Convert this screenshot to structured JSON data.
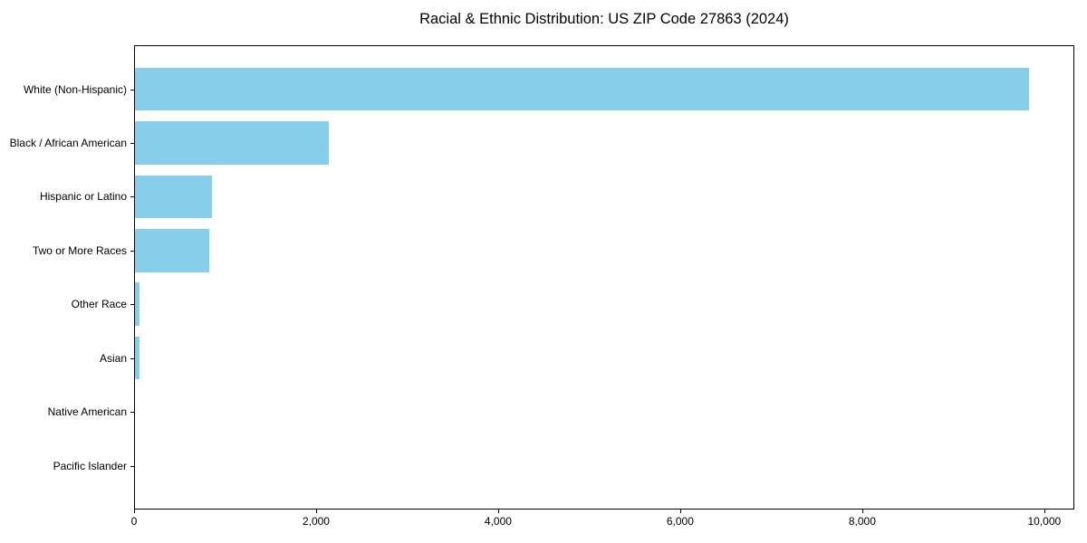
{
  "chart_data": {
    "type": "bar",
    "orientation": "horizontal",
    "title": "Racial & Ethnic Distribution: US ZIP Code 27863 (2024)",
    "categories": [
      "White (Non-Hispanic)",
      "Black / African American",
      "Hispanic or Latino",
      "Two or More Races",
      "Other Race",
      "Asian",
      "Native American",
      "Pacific Islander"
    ],
    "values": [
      9820,
      2130,
      845,
      820,
      52,
      45,
      0,
      0
    ],
    "xlabel": "",
    "ylabel": "",
    "xlim": [
      0,
      10330
    ],
    "x_ticks": [
      0,
      2000,
      4000,
      6000,
      8000,
      10000
    ],
    "x_tick_labels": [
      "0",
      "2,000",
      "4,000",
      "6,000",
      "8,000",
      "10,000"
    ],
    "bar_color": "#87CEEB",
    "axis_color": "#000000",
    "text_color": "#000000",
    "grid": false,
    "legend": "none",
    "plot_background": "#ffffff"
  }
}
